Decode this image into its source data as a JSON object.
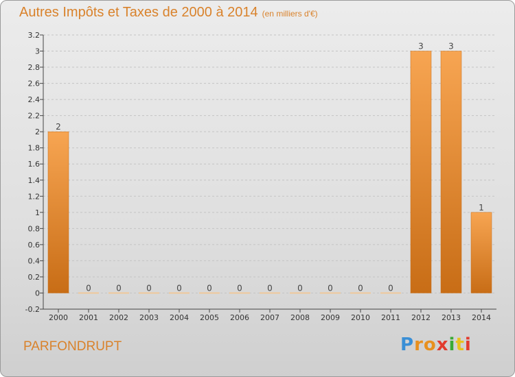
{
  "header": {
    "title": "Autres Impôts et Taxes de 2000 à 2014",
    "subtitle": "(en milliers d'€)"
  },
  "footer": {
    "city": "PARFONDRUPT",
    "logo_letters": [
      "P",
      "r",
      "o",
      "x",
      "i",
      "t",
      "i"
    ],
    "logo_colors": [
      "#3a8fd6",
      "#e8901e",
      "#e8901e",
      "#e23b2e",
      "#3aaa35",
      "#e8c21e",
      "#e23b2e"
    ]
  },
  "colors": {
    "bar_top": "#f7a552",
    "bar_bottom": "#c86d16",
    "zero_bar": "#f0c89a",
    "text_accent": "#d9822b"
  },
  "chart_data": {
    "type": "bar",
    "categories": [
      "2000",
      "2001",
      "2002",
      "2003",
      "2004",
      "2005",
      "2006",
      "2007",
      "2008",
      "2009",
      "2010",
      "2011",
      "2012",
      "2013",
      "2014"
    ],
    "values": [
      2,
      0,
      0,
      0,
      0,
      0,
      0,
      0,
      0,
      0,
      0,
      0,
      3,
      3,
      1
    ],
    "value_labels": [
      "2",
      "0",
      "0",
      "0",
      "0",
      "0",
      "0",
      "0",
      "0",
      "0",
      "0",
      "0",
      "3",
      "3",
      "1"
    ],
    "ylim": [
      -0.2,
      3.2
    ],
    "yticks": [
      -0.2,
      0,
      0.2,
      0.4,
      0.6,
      0.8,
      1,
      1.2,
      1.4,
      1.6,
      1.8,
      2,
      2.2,
      2.4,
      2.6,
      2.8,
      3,
      3.2
    ],
    "ytick_labels": [
      "-0.2",
      "0",
      "0.2",
      "0.4",
      "0.6",
      "0.8",
      "1",
      "1.2",
      "1.4",
      "1.6",
      "1.8",
      "2",
      "2.2",
      "2.4",
      "2.6",
      "2.8",
      "3",
      "3.2"
    ],
    "grid": "horizontal dashed",
    "title": "Autres Impôts et Taxes de 2000 à 2014",
    "xlabel": "",
    "ylabel": ""
  }
}
